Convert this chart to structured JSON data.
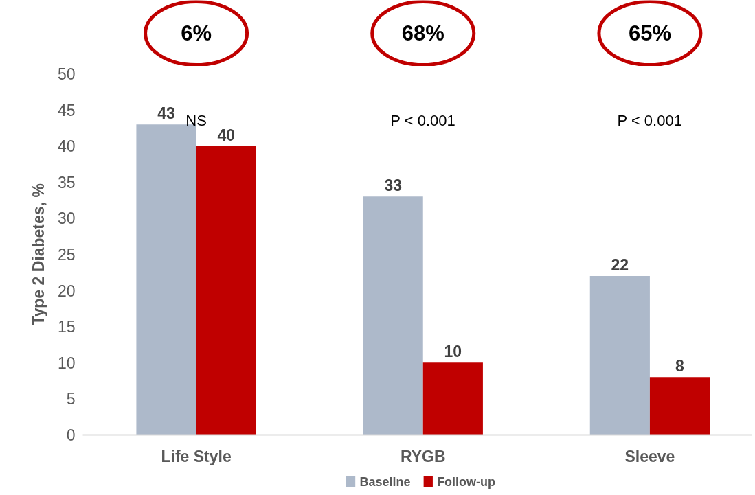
{
  "chart_data": {
    "type": "bar",
    "ylabel": "Type 2 Diabetes, %",
    "categories": [
      "Life Style",
      "RYGB",
      "Sleeve"
    ],
    "series": [
      {
        "name": "Baseline",
        "color": "#adb9ca",
        "values": [
          43,
          33,
          22
        ]
      },
      {
        "name": "Follow-up",
        "color": "#c00000",
        "values": [
          40,
          10,
          8
        ]
      }
    ],
    "ylim": [
      0,
      50
    ],
    "yticks": [
      0,
      5,
      10,
      15,
      20,
      25,
      30,
      35,
      40,
      45,
      50
    ],
    "data_labels": true,
    "legend": "bottom",
    "grid": false,
    "annotations": [
      "6%",
      "68%",
      "65%",
      "NS",
      "P < 0.001",
      "P < 0.001"
    ]
  }
}
